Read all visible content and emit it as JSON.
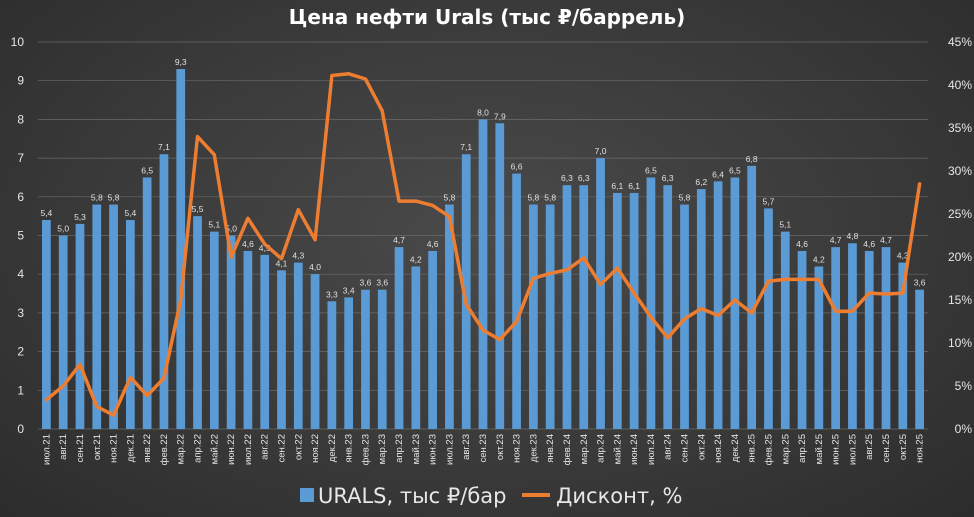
{
  "chart_data": {
    "type": "bar",
    "title": "Цена нефти Urals (тыс ₽/баррель)",
    "categories": [
      "июл.21",
      "авг.21",
      "сен.21",
      "окт.21",
      "ноя.21",
      "дек.21",
      "янв.22",
      "фев.22",
      "мар.22",
      "апр.22",
      "май.22",
      "июн.22",
      "июл.22",
      "авг.22",
      "сен.22",
      "окт.22",
      "ноя.22",
      "дек.22",
      "янв.23",
      "фев.23",
      "мар.23",
      "апр.23",
      "май.23",
      "июн.23",
      "июл.23",
      "авг.23",
      "сен.23",
      "окт.23",
      "ноя.23",
      "дек.23",
      "янв.24",
      "фев.24",
      "мар.24",
      "апр.24",
      "май.24",
      "июн.24",
      "июл.24",
      "авг.24",
      "сен.24",
      "окт.24",
      "ноя.24",
      "дек.24",
      "янв.25",
      "фев.25",
      "мар.25",
      "апр.25",
      "май.25",
      "июн.25",
      "июл.25",
      "авг.25",
      "сен.25",
      "окт.25",
      "ноя.25"
    ],
    "series": [
      {
        "name": "URALS, тыс ₽/бар",
        "type": "bar",
        "axis": "left",
        "color": "#5b9bd5",
        "values": [
          5.4,
          5.0,
          5.3,
          5.8,
          5.8,
          5.4,
          6.5,
          7.1,
          9.3,
          5.5,
          5.1,
          5.0,
          4.6,
          4.5,
          4.1,
          4.3,
          4.0,
          3.3,
          3.4,
          3.6,
          3.6,
          4.7,
          4.2,
          4.6,
          5.8,
          7.1,
          8.0,
          7.9,
          6.6,
          5.8,
          5.8,
          6.3,
          6.3,
          7.0,
          6.1,
          6.1,
          6.5,
          6.3,
          5.8,
          6.2,
          6.4,
          6.5,
          6.8,
          5.7,
          5.1,
          4.6,
          4.2,
          4.7,
          4.8,
          4.6,
          4.7,
          4.3,
          3.6
        ],
        "labels": [
          "5,4",
          "5,0",
          "5,3",
          "5,8",
          "5,8",
          "5,4",
          "6,5",
          "7,1",
          "9,3",
          "5,5",
          "5,1",
          "5,0",
          "4,6",
          "4,5",
          "4,1",
          "4,3",
          "4,0",
          "3,3",
          "3,4",
          "3,6",
          "3,6",
          "4,7",
          "4,2",
          "4,6",
          "5,8",
          "7,1",
          "8,0",
          "7,9",
          "6,6",
          "5,8",
          "5,8",
          "6,3",
          "6,3",
          "7,0",
          "6,1",
          "6,1",
          "6,5",
          "6,3",
          "5,8",
          "6,2",
          "6,4",
          "6,5",
          "6,8",
          "5,7",
          "5,1",
          "4,6",
          "4,2",
          "4,7",
          "4,8",
          "4,6",
          "4,7",
          "4,3",
          "3,6"
        ]
      },
      {
        "name": "Дисконт, %",
        "type": "line",
        "axis": "right",
        "color": "#ed7d31",
        "values": [
          3.4,
          5.0,
          7.5,
          2.6,
          1.6,
          6.0,
          3.9,
          5.9,
          15.0,
          34.0,
          31.9,
          20.0,
          24.5,
          21.5,
          19.8,
          25.5,
          22.0,
          41.1,
          41.3,
          40.7,
          37.0,
          26.5,
          26.5,
          26.0,
          24.7,
          14.5,
          11.5,
          10.4,
          12.5,
          17.5,
          18.1,
          18.5,
          19.9,
          16.8,
          18.7,
          15.8,
          13.0,
          10.6,
          12.8,
          14.0,
          13.2,
          15.0,
          13.5,
          17.2,
          17.4,
          17.4,
          17.4,
          13.7,
          13.7,
          15.8,
          15.7,
          15.8,
          28.5
        ]
      }
    ],
    "ylim": [
      0,
      10
    ],
    "y_ticks": [
      "0",
      "1",
      "2",
      "3",
      "4",
      "5",
      "6",
      "7",
      "8",
      "9",
      "10"
    ],
    "y2lim": [
      0,
      45
    ],
    "y2_ticks": [
      "0%",
      "5%",
      "10%",
      "15%",
      "20%",
      "25%",
      "30%",
      "35%",
      "40%",
      "45%"
    ],
    "xlabel": "",
    "ylabel": "",
    "grid": true,
    "legend_position": "bottom-center",
    "background_color": "#3a3a3a"
  }
}
